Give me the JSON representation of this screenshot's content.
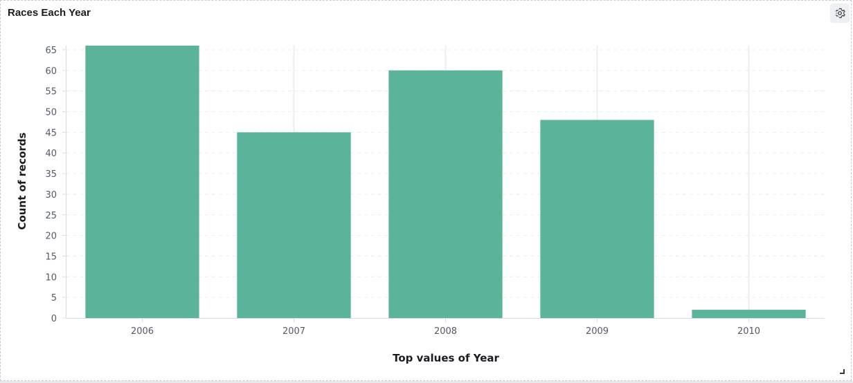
{
  "panel": {
    "title": "Races Each Year",
    "settings_icon": "gear-icon"
  },
  "colors": {
    "bar": "#5bb39a",
    "grid": "#eaedf1",
    "axis": "#d8dce2"
  },
  "chart_data": {
    "type": "bar",
    "categories": [
      "2006",
      "2007",
      "2008",
      "2009",
      "2010"
    ],
    "values": [
      66,
      45,
      60,
      48,
      2
    ],
    "xlabel": "Top values of Year",
    "ylabel": "Count of records",
    "ylim": [
      0,
      66
    ],
    "yticks": [
      0,
      5,
      10,
      15,
      20,
      25,
      30,
      35,
      40,
      45,
      50,
      55,
      60,
      65
    ],
    "grid": true
  }
}
